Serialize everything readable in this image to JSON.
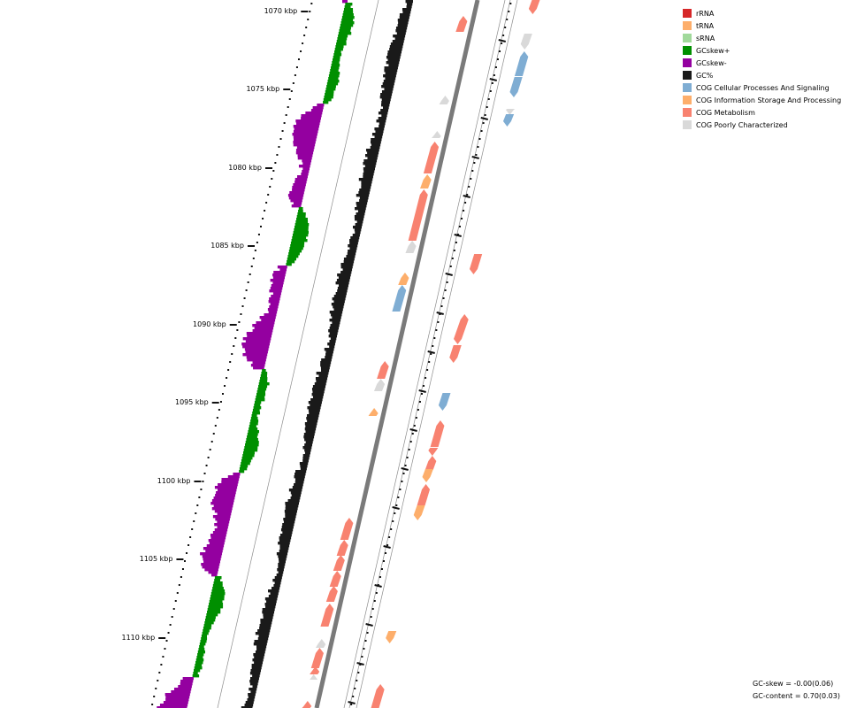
{
  "map": {
    "type": "circular-genome-map-zoomed",
    "tick_labels": [
      "1070 kbp",
      "1075 kbp",
      "1080 kbp",
      "1085 kbp",
      "1090 kbp",
      "1095 kbp",
      "1100 kbp",
      "1105 kbp",
      "1110 kbp"
    ]
  },
  "legend": {
    "items": [
      {
        "label": "rRNA",
        "color": "#d62728"
      },
      {
        "label": "tRNA",
        "color": "#fdae6b"
      },
      {
        "label": "sRNA",
        "color": "#a1d99b"
      },
      {
        "label": "GCskew+",
        "color": "#008f00"
      },
      {
        "label": "GCskew-",
        "color": "#9400a0"
      },
      {
        "label": "GC%",
        "color": "#1a1a1a"
      },
      {
        "label": "COG Cellular Processes And Signaling",
        "color": "#7fadd3"
      },
      {
        "label": "COG Information Storage And Processing",
        "color": "#fdae6b"
      },
      {
        "label": "COG Metabolism",
        "color": "#f88270"
      },
      {
        "label": "COG Poorly Characterized",
        "color": "#d9d9d9"
      }
    ]
  },
  "stats": {
    "gc_skew": "GC-skew = -0.00(0.06)",
    "gc_content": "GC-content = 0.70(0.03)"
  }
}
